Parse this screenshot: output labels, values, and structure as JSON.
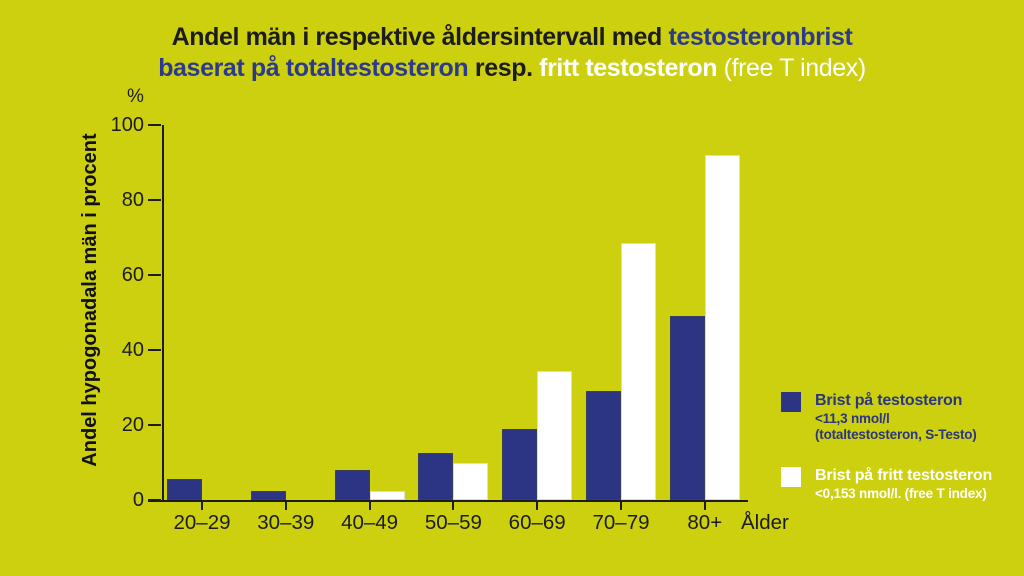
{
  "title": {
    "line1_black": "Andel män i respektive åldersintervall med ",
    "line1_blue": "testosteronbrist",
    "line2_blue": "baserat på totaltestosteron ",
    "line2_black": "resp. ",
    "line2_white_bold": "fritt testosteron ",
    "line2_white_light": "(free T index)"
  },
  "axis": {
    "unit": "%",
    "y_title": "Andel hypogonadala män i procent",
    "x_title": "Ålder"
  },
  "legend": {
    "items": [
      {
        "label": "Brist på testosteron",
        "detail1": "<11,3 nmol/l",
        "detail2": "(totaltestosteron, S-Testo)",
        "color": "#2b3583"
      },
      {
        "label": "Brist på fritt testosteron",
        "detail1": "<0,153 nmol/l. (free T index)",
        "detail2": "",
        "color": "#ffffff"
      }
    ]
  },
  "colors": {
    "background": "#cdd00e",
    "bar_blue": "#2b3583",
    "bar_white": "#ffffff",
    "title_navy": "#2d3a8c",
    "text_black": "#1c1c1c"
  },
  "chart_data": {
    "type": "bar",
    "title": "Andel män i respektive åldersintervall med testosteronbrist baserat på totaltestosteron resp. fritt testosteron (free T index)",
    "categories": [
      "20–29",
      "30–39",
      "40–49",
      "50–59",
      "60–69",
      "70–79",
      "80+"
    ],
    "series": [
      {
        "name": "Brist på testosteron (<11,3 nmol/l, totaltestosteron, S-Testo)",
        "color": "#2b3583",
        "values": [
          5.5,
          2.5,
          8,
          12.5,
          19,
          29,
          49
        ]
      },
      {
        "name": "Brist på fritt testosteron (<0,153 nmol/l, free T index)",
        "color": "#ffffff",
        "values": [
          0,
          0,
          2.5,
          10,
          34.5,
          68.5,
          92
        ]
      }
    ],
    "xlabel": "Ålder",
    "ylabel": "Andel hypogonadala män i procent",
    "y_unit": "%",
    "ylim": [
      0,
      100
    ],
    "yticks": [
      0,
      20,
      40,
      60,
      80,
      100
    ],
    "grid": false,
    "legend_position": "right"
  }
}
